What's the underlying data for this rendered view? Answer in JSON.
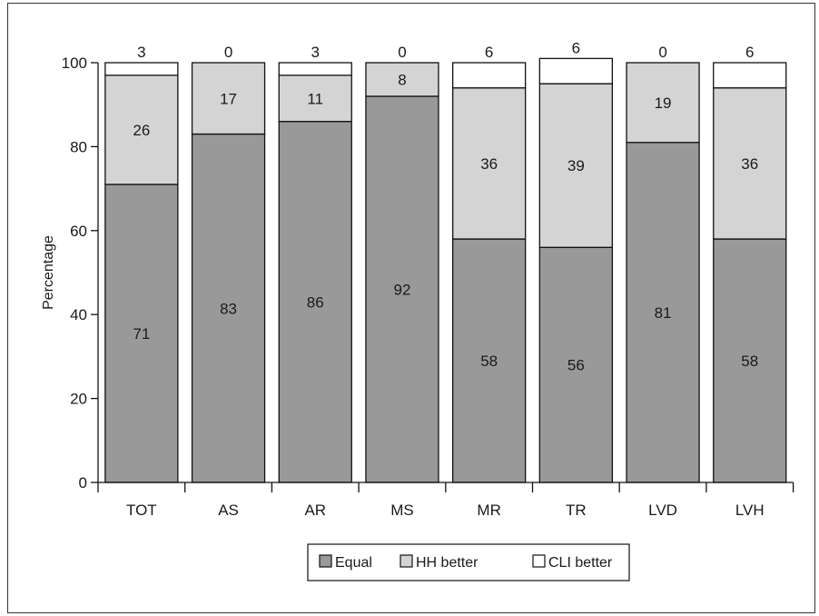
{
  "chart_data": {
    "type": "bar",
    "stacked": true,
    "ylabel": "Percentage",
    "ylim": [
      0,
      100
    ],
    "yticks": [
      0,
      20,
      40,
      60,
      80,
      100
    ],
    "categories": [
      "TOT",
      "AS",
      "AR",
      "MS",
      "MR",
      "TR",
      "LVD",
      "LVH"
    ],
    "series": [
      {
        "name": "Equal",
        "color": "#999999",
        "values": [
          71,
          83,
          86,
          92,
          58,
          56,
          81,
          58
        ]
      },
      {
        "name": "HH better",
        "color": "#d4d4d4",
        "values": [
          26,
          17,
          11,
          8,
          36,
          39,
          19,
          36
        ]
      },
      {
        "name": "CLI better",
        "color": "#ffffff",
        "values": [
          3,
          0,
          3,
          0,
          6,
          6,
          0,
          6
        ]
      }
    ],
    "legend_position": "bottom"
  }
}
